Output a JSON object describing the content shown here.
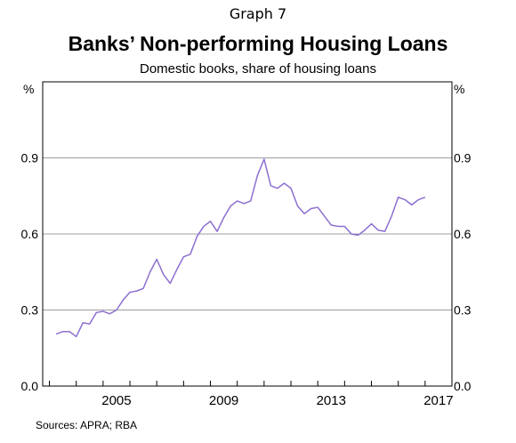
{
  "graph_label": "Graph 7",
  "sources_text": "Sources:  APRA; RBA",
  "chart_data": {
    "type": "line",
    "title": "Banks’ Non-performing Housing Loans",
    "subtitle": "Domestic books, share of housing loans",
    "ylabel_left": "%",
    "ylabel_right": "%",
    "ylim": [
      0,
      1.2
    ],
    "yticks": [
      0.0,
      0.3,
      0.6,
      0.9
    ],
    "ytick_labels": [
      "0.0",
      "0.3",
      "0.6",
      "0.9"
    ],
    "xlim": [
      2002.75,
      2018.0
    ],
    "xticks": [
      2005,
      2009,
      2013,
      2017
    ],
    "xtick_labels": [
      "2005",
      "2009",
      "2013",
      "2017"
    ],
    "grid": true,
    "line_color": "#8c6fd0",
    "series": [
      {
        "x": [
          2003.25,
          2003.5,
          2003.75,
          2004.0,
          2004.25,
          2004.5,
          2004.75,
          2005.0,
          2005.25,
          2005.5,
          2005.75,
          2006.0,
          2006.25,
          2006.5,
          2006.75,
          2007.0,
          2007.25,
          2007.5,
          2007.75,
          2008.0,
          2008.25,
          2008.5,
          2008.75,
          2009.0,
          2009.25,
          2009.5,
          2009.75,
          2010.0,
          2010.25,
          2010.5,
          2010.75,
          2011.0,
          2011.25,
          2011.5,
          2011.75,
          2012.0,
          2012.25,
          2012.5,
          2012.75,
          2013.0,
          2013.25,
          2013.5,
          2013.75,
          2014.0,
          2014.25,
          2014.5,
          2014.75,
          2015.0,
          2015.25,
          2015.5,
          2015.75,
          2016.0,
          2016.25,
          2016.5,
          2016.75,
          2017.0
        ],
        "values": [
          0.205,
          0.215,
          0.215,
          0.195,
          0.25,
          0.245,
          0.29,
          0.295,
          0.285,
          0.3,
          0.34,
          0.37,
          0.375,
          0.385,
          0.45,
          0.5,
          0.44,
          0.405,
          0.46,
          0.51,
          0.52,
          0.59,
          0.63,
          0.65,
          0.61,
          0.665,
          0.71,
          0.73,
          0.72,
          0.73,
          0.83,
          0.895,
          0.79,
          0.78,
          0.8,
          0.78,
          0.71,
          0.68,
          0.7,
          0.705,
          0.67,
          0.635,
          0.63,
          0.63,
          0.6,
          0.595,
          0.615,
          0.64,
          0.615,
          0.61,
          0.67,
          0.745,
          0.735,
          0.715,
          0.735,
          0.745
        ]
      }
    ]
  }
}
